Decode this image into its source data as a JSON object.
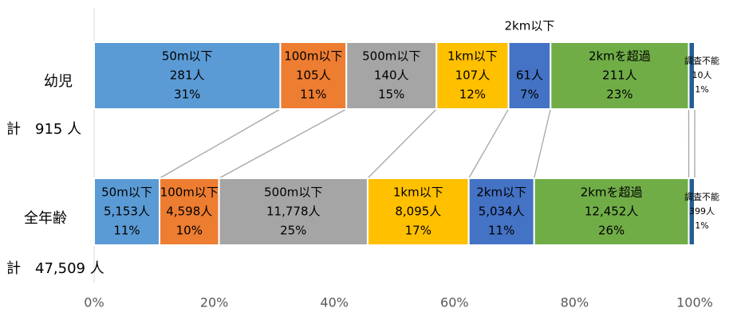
{
  "chart_data": {
    "type": "bar",
    "orientation": "horizontal",
    "stacked": "percent",
    "categories": [
      "幼児",
      "全年齢"
    ],
    "totals": [
      "計　915 人",
      "計　47,509 人"
    ],
    "xlim": [
      0,
      100
    ],
    "xticks": [
      "0%",
      "20%",
      "40%",
      "60%",
      "80%",
      "100%"
    ],
    "series": [
      {
        "name": "50m以下",
        "color": "#5B9BD5",
        "values": [
          31,
          11
        ],
        "counts": [
          "281人",
          "5,153人"
        ],
        "pct_labels": [
          "31%",
          "11%"
        ]
      },
      {
        "name": "100m以下",
        "color": "#ED7D31",
        "values": [
          11,
          10
        ],
        "counts": [
          "105人",
          "4,598人"
        ],
        "pct_labels": [
          "11%",
          "10%"
        ]
      },
      {
        "name": "500m以下",
        "color": "#A5A5A5",
        "values": [
          15,
          25
        ],
        "counts": [
          "140人",
          "11,778人"
        ],
        "pct_labels": [
          "15%",
          "25%"
        ]
      },
      {
        "name": "1km以下",
        "color": "#FFC000",
        "values": [
          12,
          17
        ],
        "counts": [
          "107人",
          "8,095人"
        ],
        "pct_labels": [
          "12%",
          "17%"
        ]
      },
      {
        "name": "2km以下",
        "color": "#4472C4",
        "values": [
          7,
          11
        ],
        "counts": [
          "61人",
          "5,034人"
        ],
        "pct_labels": [
          "7%",
          "11%"
        ]
      },
      {
        "name": "2kmを超過",
        "color": "#70AD47",
        "values": [
          23,
          26
        ],
        "counts": [
          "211人",
          "12,452人"
        ],
        "pct_labels": [
          "23%",
          "26%"
        ]
      },
      {
        "name": "調査不能",
        "color": "#255E91",
        "values": [
          1,
          1
        ],
        "counts": [
          "10人",
          "399人"
        ],
        "pct_labels": [
          "1%",
          "1%"
        ]
      }
    ],
    "grid": false,
    "legend": "none"
  }
}
